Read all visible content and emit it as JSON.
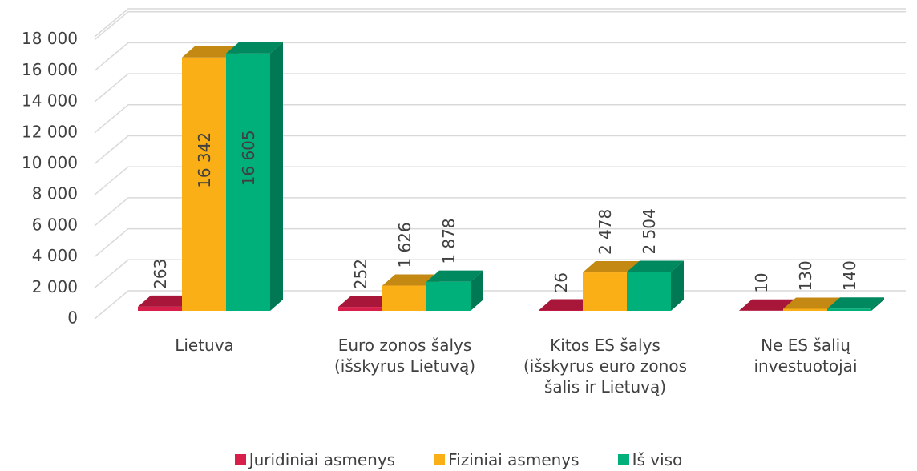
{
  "chart_data": {
    "type": "bar3d",
    "categories": [
      "Lietuva",
      "Euro zonos šalys (išskyrus Lietuvą)",
      "Kitos ES šalys (išskyrus euro zonos šalis ir Lietuvą)",
      "Ne ES šalių investuotojai"
    ],
    "series": [
      {
        "name": "Juridiniai asmenys",
        "color": "#d81e4a",
        "values": [
          263,
          252,
          26,
          10
        ],
        "value_labels": [
          "263",
          "252",
          "26",
          "10"
        ]
      },
      {
        "name": "Fiziniai asmenys",
        "color": "#fbaf17",
        "values": [
          16342,
          1626,
          2478,
          130
        ],
        "value_labels": [
          "16 342",
          "1 626",
          "2 478",
          "130"
        ]
      },
      {
        "name": "Iš viso",
        "color": "#00b07a",
        "values": [
          16605,
          1878,
          2504,
          140
        ],
        "value_labels": [
          "16 605",
          "1 878",
          "2 504",
          "140"
        ]
      }
    ],
    "ylim": [
      0,
      20000
    ],
    "yticks": [
      0,
      {
        "value": 2000,
        "label": "2 000"
      },
      {
        "value": 4000,
        "label": "4 000"
      },
      {
        "value": 6000,
        "label": "6 000"
      },
      {
        "value": 8000,
        "label": "8 000"
      },
      {
        "value": 10000,
        "label": "10 000"
      },
      {
        "value": 12000,
        "label": "12 000"
      },
      {
        "value": 14000,
        "label": "14 000"
      },
      {
        "value": 16000,
        "label": "16 000"
      },
      {
        "value": 18000,
        "label": "18 000"
      }
    ],
    "grid": true,
    "legend": "bottom"
  }
}
